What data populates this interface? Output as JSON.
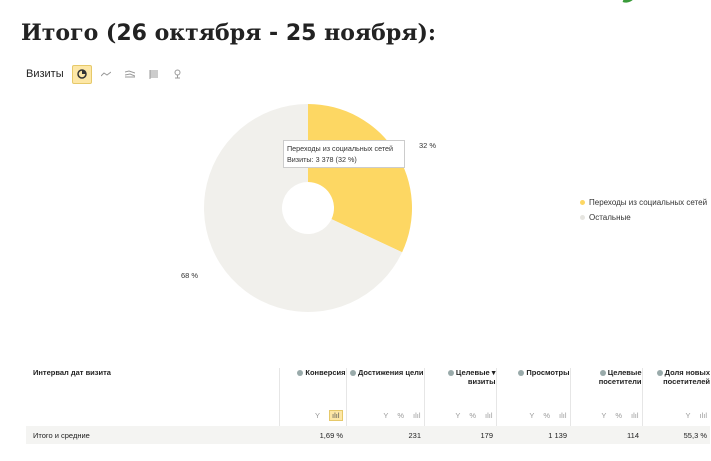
{
  "header": {
    "title_part1": "Итого (",
    "date_start": "26",
    "month_start": " октября ",
    "dash": "-",
    "date_end": " 25",
    "month_end": " ноября",
    "title_part2": "):"
  },
  "toolbar": {
    "label": "Визиты",
    "icons": [
      "pie-chart-icon",
      "line-chart-icon",
      "area-chart-icon",
      "bar-chart-icon",
      "map-icon"
    ]
  },
  "chart_data": {
    "type": "pie",
    "title": "",
    "series": [
      {
        "name": "Переходы из социальных сетей",
        "value": 32,
        "visits": "3 378",
        "color": "#fdd763"
      },
      {
        "name": "Остальные",
        "value": 68,
        "color": "#f1f0ec"
      }
    ],
    "labels": [
      "32 %",
      "68 %"
    ],
    "legend_position": "right"
  },
  "tooltip": {
    "line1": "Переходы из социальных сетей",
    "line2": "Визиты: 3 378 (32 %)"
  },
  "table": {
    "headers": [
      "Интервал дат визита",
      "Конверсия",
      "Достижения цели",
      "Целевые ▾ визиты",
      "Просмотры",
      "Целевые посетители",
      "Доля новых посетителей"
    ],
    "total_row": [
      "Итого и средние",
      "1,69 %",
      "231",
      "179",
      "1 139",
      "114",
      "55,3 %"
    ]
  }
}
